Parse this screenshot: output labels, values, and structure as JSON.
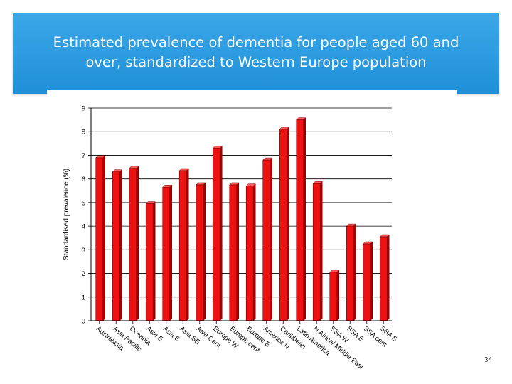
{
  "slide": {
    "title": "Estimated prevalence of dementia for people aged 60 and\nover, standardized to Western Europe population",
    "page_number": "34"
  },
  "colors": {
    "band": "#2196dc",
    "bar_fill": "#ee1111",
    "bar_stroke": "#7a0000",
    "grid": "#000000"
  },
  "chart_data": {
    "type": "bar",
    "ylabel": "Standardised prevalence (%)",
    "xlabel": "",
    "ylim": [
      0,
      9
    ],
    "yticks": [
      0,
      1,
      2,
      3,
      4,
      5,
      6,
      7,
      8,
      9
    ],
    "grid": true,
    "categories": [
      "Australasia",
      "Asia Pacific",
      "Oceania",
      "Asia E",
      "Asia S",
      "Asia SE",
      "Asia Cent",
      "Europe W",
      "Europe cent",
      "Europe E",
      "America N",
      "Caribbean",
      "Latin America",
      "N Africa/ Middle East",
      "SSA W",
      "SSA E",
      "SSA cent",
      "SSA S"
    ],
    "values": [
      6.9,
      6.3,
      6.45,
      4.95,
      5.65,
      6.35,
      5.75,
      7.3,
      5.75,
      5.7,
      6.8,
      8.1,
      8.5,
      5.8,
      2.05,
      4.0,
      3.25,
      3.55
    ]
  }
}
